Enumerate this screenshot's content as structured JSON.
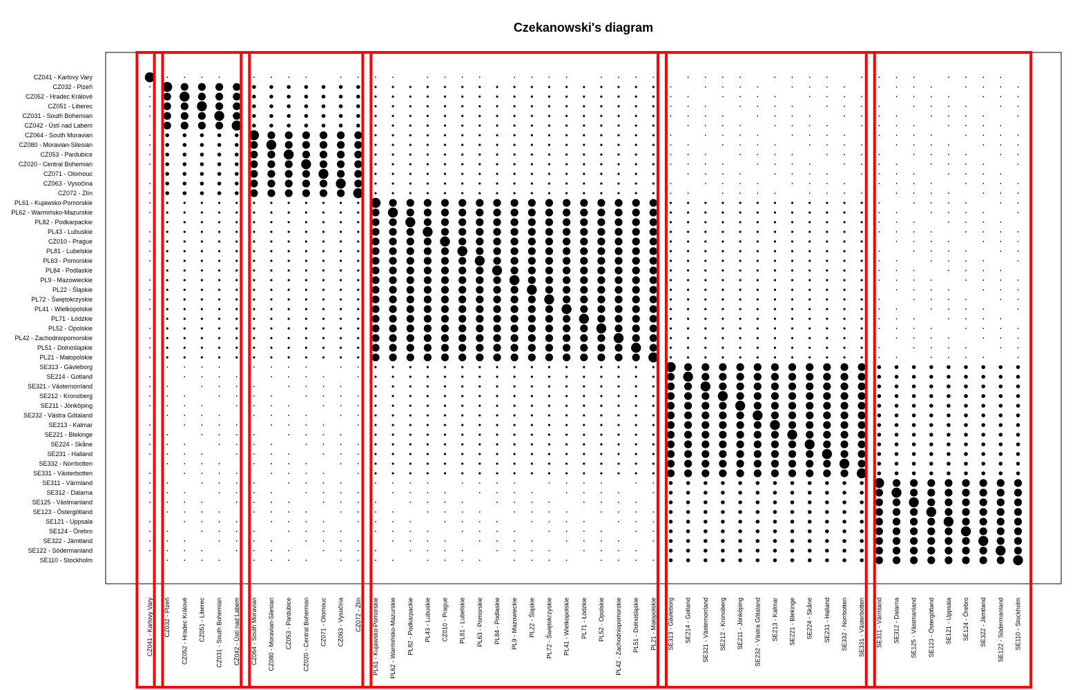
{
  "chart_data": {
    "type": "heatmap",
    "title": "Czekanowski's diagram",
    "xlabel": "",
    "ylabel": "",
    "grid": false,
    "legend": "none",
    "mark_color": "#000000",
    "frame_color": "#ff0000",
    "categories": [
      "CZ041 - Karlovy Vary",
      "CZ032 - Plzeň",
      "CZ052 - Hradec Králové",
      "CZ051 - Liberec",
      "CZ031 - South Bohemian",
      "CZ042 - Ústí nad Labem",
      "CZ064 - South Moravian",
      "CZ080 - Moravian-Silesian",
      "CZ053 - Pardubice",
      "CZ020 - Central Bohemian",
      "CZ071 - Olomouc",
      "CZ063 - Vysočina",
      "CZ072 - Zlín",
      "PL61 - Kujawsko-Pomorskie",
      "PL62 - Warmińsko-Mazurskie",
      "PL82 - Podkarpackie",
      "PL43 - Lubuskie",
      "CZ010 - Prague",
      "PL81 - Lubelskie",
      "PL63 - Pomorskie",
      "PL84 - Podlaskie",
      "PL9 - Mazowieckie",
      "PL22 - Śląskie",
      "PL72 - Świętokrzyskie",
      "PL41 - Wielkopolskie",
      "PL71 - Łódzkie",
      "PL52 - Opolskie",
      "PL42 - Zachodniopomorskie",
      "PL51 - Dolnośląskie",
      "PL21 - Małopolskie",
      "SE313 - Gävleborg",
      "SE214 - Gotland",
      "SE321 - Västernorrland",
      "SE212 - Kronoberg",
      "SE211 - Jönköping",
      "SE232 - Västra Götaland",
      "SE213 - Kalmar",
      "SE221 - Blekinge",
      "SE224 - Skåne",
      "SE231 - Halland",
      "SE332 - Norrbotten",
      "SE331 - Västerbotten",
      "SE311 - Värmland",
      "SE312 - Dalarna",
      "SE125 - Västmanland",
      "SE123 - Östergötland",
      "SE121 - Uppsala",
      "SE124 - Örebro",
      "SE322 - Jämtland",
      "SE122 - Södermanland",
      "SE110 - Stockholm"
    ],
    "clusters": [
      {
        "start": 0,
        "end": 0
      },
      {
        "start": 1,
        "end": 5
      },
      {
        "start": 6,
        "end": 12
      },
      {
        "start": 13,
        "end": 29
      },
      {
        "start": 30,
        "end": 41
      },
      {
        "start": 42,
        "end": 50
      }
    ]
  }
}
